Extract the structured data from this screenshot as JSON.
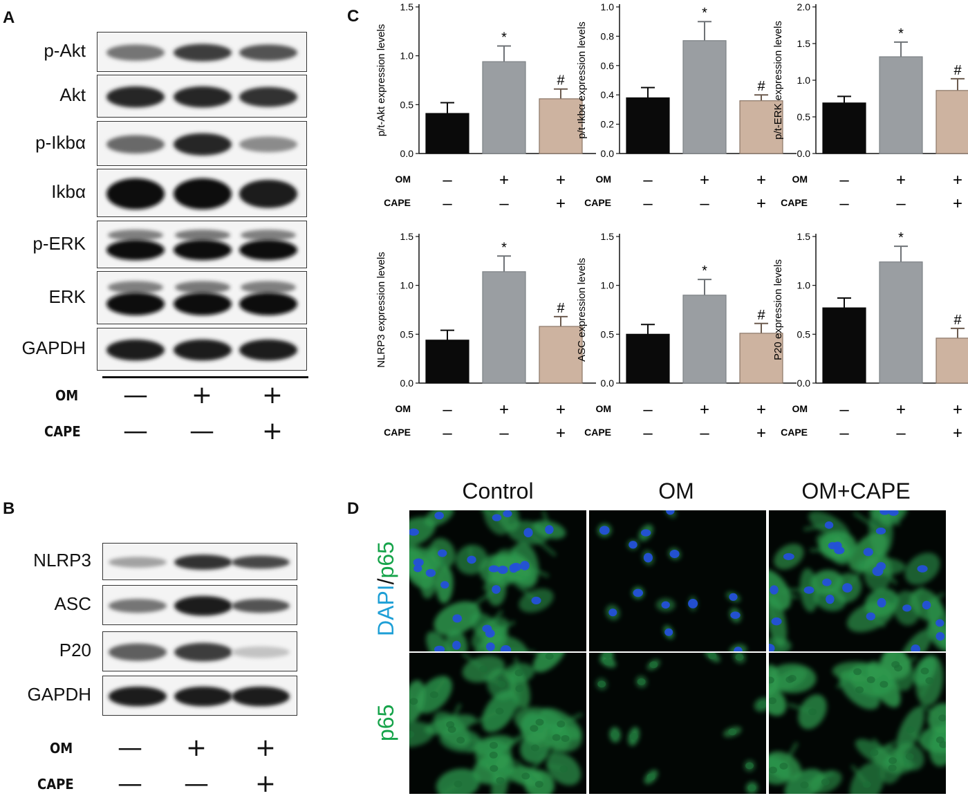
{
  "panels": {
    "a": "A",
    "b": "B",
    "c": "C",
    "d": "D"
  },
  "panel_a": {
    "bands": [
      "p-Akt",
      "Akt",
      "p-Ikbα",
      "Ikbα",
      "p-ERK",
      "ERK",
      "GAPDH"
    ],
    "om_label": "OM",
    "cape_label": "CAPE",
    "om_signs": [
      "—",
      "+",
      "+"
    ],
    "cape_signs": [
      "—",
      "—",
      "+"
    ]
  },
  "panel_b": {
    "bands": [
      "NLRP3",
      "ASC",
      "P20",
      "GAPDH"
    ],
    "om_label": "OM",
    "cape_label": "CAPE",
    "om_signs": [
      "—",
      "+",
      "+"
    ],
    "cape_signs": [
      "—",
      "—",
      "+"
    ]
  },
  "panel_c": {
    "om_label": "OM",
    "cape_label": "CAPE",
    "om_signs": [
      "—",
      "+",
      "+"
    ],
    "cape_signs": [
      "—",
      "—",
      "+"
    ]
  },
  "chart_data": [
    {
      "type": "bar",
      "ylabel": "p/t-Akt expression levels",
      "ylim": [
        0,
        1.5
      ],
      "ticks": [
        "0.0",
        "0.5",
        "1.0",
        "1.5"
      ],
      "tickvals": [
        0,
        0.5,
        1.0,
        1.5
      ],
      "values": [
        0.41,
        0.94,
        0.56
      ],
      "errors": [
        0.11,
        0.16,
        0.1
      ],
      "annotations": [
        "",
        "*",
        "#"
      ]
    },
    {
      "type": "bar",
      "ylabel": "p/t-Ikbα expression levels",
      "ylim": [
        0,
        1.0
      ],
      "ticks": [
        "0.0",
        "0.2",
        "0.4",
        "0.6",
        "0.8",
        "1.0"
      ],
      "tickvals": [
        0,
        0.2,
        0.4,
        0.6,
        0.8,
        1.0
      ],
      "values": [
        0.38,
        0.77,
        0.36
      ],
      "errors": [
        0.07,
        0.13,
        0.04
      ],
      "annotations": [
        "",
        "*",
        "#"
      ]
    },
    {
      "type": "bar",
      "ylabel": "p/t-ERK expression levels",
      "ylim": [
        0,
        2.0
      ],
      "ticks": [
        "0.0",
        "0.5",
        "1.0",
        "1.5",
        "2.0"
      ],
      "tickvals": [
        0,
        0.5,
        1.0,
        1.5,
        2.0
      ],
      "values": [
        0.69,
        1.32,
        0.86
      ],
      "errors": [
        0.09,
        0.2,
        0.16
      ],
      "annotations": [
        "",
        "*",
        "#"
      ]
    },
    {
      "type": "bar",
      "ylabel": "NLRP3 expression levels",
      "ylim": [
        0,
        1.5
      ],
      "ticks": [
        "0.0",
        "0.5",
        "1.0",
        "1.5"
      ],
      "tickvals": [
        0,
        0.5,
        1.0,
        1.5
      ],
      "values": [
        0.44,
        1.14,
        0.58
      ],
      "errors": [
        0.1,
        0.16,
        0.1
      ],
      "annotations": [
        "",
        "*",
        "#"
      ]
    },
    {
      "type": "bar",
      "ylabel": "ASC expression levels",
      "ylim": [
        0,
        1.5
      ],
      "ticks": [
        "0.0",
        "0.5",
        "1.0",
        "1.5"
      ],
      "tickvals": [
        0,
        0.5,
        1.0,
        1.5
      ],
      "values": [
        0.5,
        0.9,
        0.51
      ],
      "errors": [
        0.1,
        0.16,
        0.1
      ],
      "annotations": [
        "",
        "*",
        "#"
      ]
    },
    {
      "type": "bar",
      "ylabel": "P20 expression levels",
      "ylim": [
        0,
        1.5
      ],
      "ticks": [
        "0.0",
        "0.5",
        "1.0",
        "1.5"
      ],
      "tickvals": [
        0,
        0.5,
        1.0,
        1.5
      ],
      "values": [
        0.77,
        1.24,
        0.46
      ],
      "errors": [
        0.1,
        0.16,
        0.1
      ],
      "annotations": [
        "",
        "*",
        "#"
      ]
    }
  ],
  "colors": {
    "control": "#0a0a0a",
    "om": "#9a9ea2",
    "om_cape": "#cdb3a0"
  },
  "panel_d": {
    "columns": [
      "Control",
      "OM",
      "OM+CAPE"
    ],
    "row1_label_dapi": "DAPI",
    "row1_label_sep": "/",
    "row1_label_p65": "p65",
    "row2_label": "p65",
    "dapi_color": "#1e9fd6",
    "p65_color": "#16a34a"
  }
}
